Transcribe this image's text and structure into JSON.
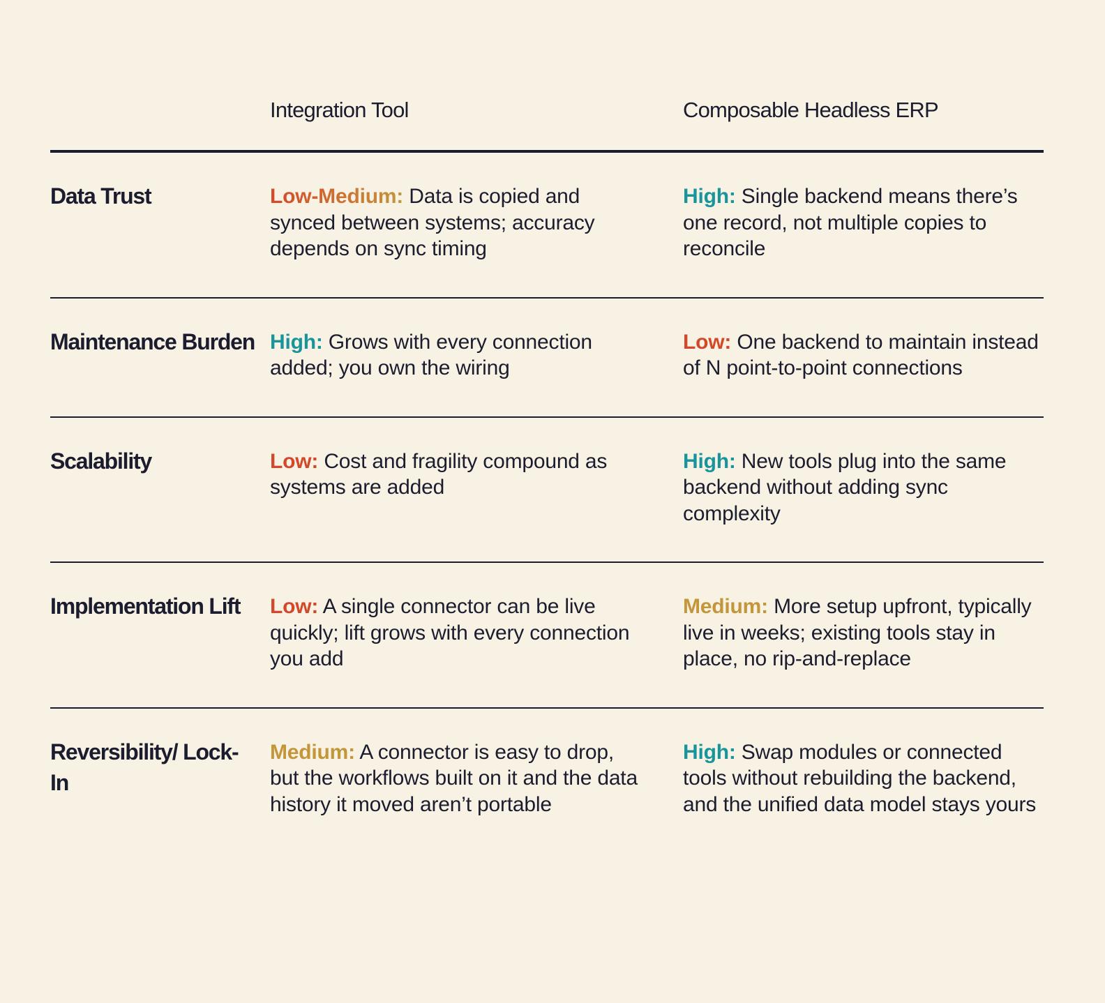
{
  "table": {
    "headers": [
      "Integration Tool",
      "Composable Headless ERP"
    ],
    "rows": [
      {
        "label": "Data Trust",
        "cells": [
          {
            "rating": "Low-Medium:",
            "color": [
              "#d4482a",
              "#c4963a"
            ],
            "text": "Data is copied and synced between systems; accuracy depends on sync timing"
          },
          {
            "rating": "High:",
            "color": [
              "#17959b"
            ],
            "text": "Single backend means there’s one record, not multiple copies to reconcile"
          }
        ]
      },
      {
        "label": "Maintenance Burden",
        "cells": [
          {
            "rating": "High:",
            "color": [
              "#17959b"
            ],
            "text": "Grows with every connection added; you own the wiring"
          },
          {
            "rating": "Low:",
            "color": [
              "#d4482a"
            ],
            "text": "One backend to maintain instead of N point-to-point connections"
          }
        ]
      },
      {
        "label": "Scalability",
        "cells": [
          {
            "rating": "Low:",
            "color": [
              "#d4482a"
            ],
            "text": "Cost and fragility compound as systems are added"
          },
          {
            "rating": "High:",
            "color": [
              "#17959b"
            ],
            "text": "New tools plug into the same backend without adding sync complexity"
          }
        ]
      },
      {
        "label": "Implementation Lift",
        "cells": [
          {
            "rating": "Low:",
            "color": [
              "#d4482a"
            ],
            "text": "A single connector can be live quickly; lift grows with every connection you add"
          },
          {
            "rating": "Medium:",
            "color": [
              "#c4963a"
            ],
            "text": "More setup upfront, typically live in weeks; existing tools stay in place, no rip-and-replace"
          }
        ]
      },
      {
        "label": "Reversibility/ Lock-In",
        "cells": [
          {
            "rating": "Medium:",
            "color": [
              "#c4963a"
            ],
            "text": "A connector is easy to drop, but the workflows built on it and the data history it moved aren’t portable"
          },
          {
            "rating": "High:",
            "color": [
              "#17959b"
            ],
            "text": "Swap modules or connected tools without rebuilding the backend, and the unified data model stays yours"
          }
        ]
      }
    ]
  }
}
